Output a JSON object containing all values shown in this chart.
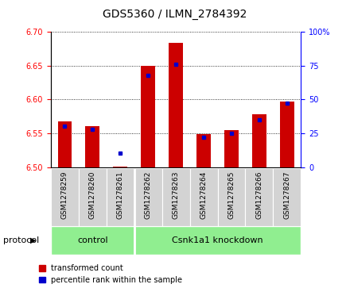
{
  "title": "GDS5360 / ILMN_2784392",
  "samples": [
    "GSM1278259",
    "GSM1278260",
    "GSM1278261",
    "GSM1278262",
    "GSM1278263",
    "GSM1278264",
    "GSM1278265",
    "GSM1278266",
    "GSM1278267"
  ],
  "red_values": [
    6.568,
    6.561,
    6.501,
    6.65,
    6.683,
    6.549,
    6.554,
    6.578,
    6.597
  ],
  "blue_values": [
    30,
    28,
    10,
    68,
    76,
    22,
    25,
    35,
    47
  ],
  "ylim_left": [
    6.5,
    6.7
  ],
  "ylim_right": [
    0,
    100
  ],
  "yticks_left": [
    6.5,
    6.55,
    6.6,
    6.65,
    6.7
  ],
  "yticks_right": [
    0,
    25,
    50,
    75,
    100
  ],
  "bar_color": "#CC0000",
  "dot_color": "#0000CC",
  "bar_width": 0.5,
  "base_value": 6.5,
  "control_label": "control",
  "knockdown_label": "Csnk1a1 knockdown",
  "protocol_label": "protocol",
  "legend1": "transformed count",
  "legend2": "percentile rank within the sample",
  "green_color": "#90EE90",
  "gray_color": "#d3d3d3",
  "title_fontsize": 10,
  "tick_fontsize": 7,
  "label_fontsize": 6.5,
  "legend_fontsize": 7,
  "proto_fontsize": 8,
  "group_fontsize": 8
}
